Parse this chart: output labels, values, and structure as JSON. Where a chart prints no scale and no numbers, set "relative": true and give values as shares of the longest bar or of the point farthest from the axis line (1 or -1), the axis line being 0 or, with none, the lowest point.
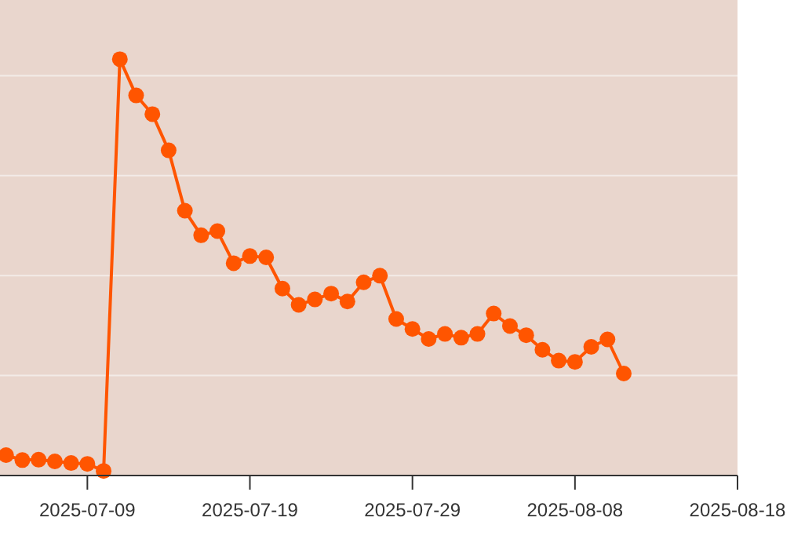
{
  "chart_data": {
    "type": "line",
    "relative": true,
    "x": [
      "2025-07-04",
      "2025-07-05",
      "2025-07-06",
      "2025-07-07",
      "2025-07-08",
      "2025-07-09",
      "2025-07-10",
      "2025-07-11",
      "2025-07-12",
      "2025-07-13",
      "2025-07-14",
      "2025-07-15",
      "2025-07-16",
      "2025-07-17",
      "2025-07-18",
      "2025-07-19",
      "2025-07-20",
      "2025-07-21",
      "2025-07-22",
      "2025-07-23",
      "2025-07-24",
      "2025-07-25",
      "2025-07-26",
      "2025-07-27",
      "2025-07-28",
      "2025-07-29",
      "2025-07-30",
      "2025-07-31",
      "2025-08-01",
      "2025-08-02",
      "2025-08-03",
      "2025-08-04",
      "2025-08-05",
      "2025-08-06",
      "2025-08-07",
      "2025-08-08",
      "2025-08-09",
      "2025-08-10",
      "2025-08-11"
    ],
    "series": [
      {
        "color": "#ff5500",
        "values": [
          0.049,
          0.037,
          0.038,
          0.034,
          0.03,
          0.028,
          0.011,
          1,
          0.913,
          0.868,
          0.781,
          0.636,
          0.577,
          0.587,
          0.51,
          0.527,
          0.524,
          0.449,
          0.41,
          0.423,
          0.437,
          0.418,
          0.464,
          0.48,
          0.376,
          0.352,
          0.328,
          0.34,
          0.331,
          0.34,
          0.389,
          0.359,
          0.337,
          0.302,
          0.276,
          0.273,
          0.309,
          0.327,
          0.245
        ]
      }
    ],
    "xlim": [
      "2025-07-03T15:00",
      "2025-08-18"
    ],
    "xticks": [
      {
        "value": "2025-07-09",
        "label": "2025-07-09"
      },
      {
        "value": "2025-07-19",
        "label": "2025-07-19"
      },
      {
        "value": "2025-07-29",
        "label": "2025-07-29"
      },
      {
        "value": "2025-08-08",
        "label": "2025-08-08"
      },
      {
        "value": "2025-08-18",
        "label": "2025-08-18"
      }
    ],
    "grid": "y",
    "marker": "circle",
    "line_style": "solid"
  }
}
